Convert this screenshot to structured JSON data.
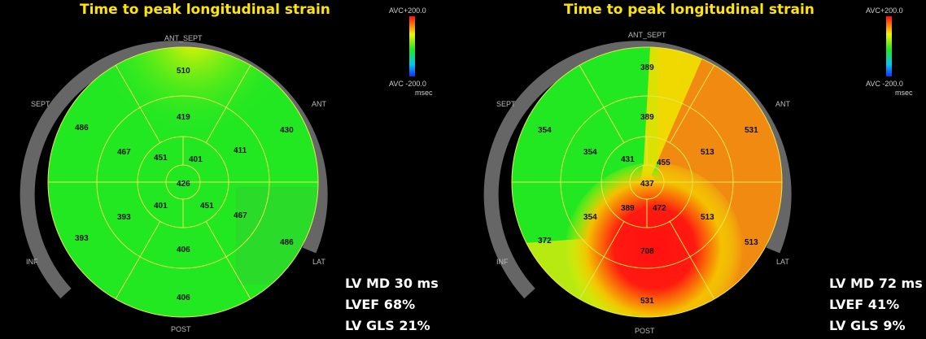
{
  "panels": [
    {
      "title": "Time to peak longitudinal strain",
      "labels": {
        "ant_sept": "ANT_SEPT",
        "ant": "ANT",
        "sept": "SEPT",
        "inf": "INF",
        "lat": "LAT",
        "post": "POST"
      },
      "scale": {
        "top": "AVC+200.0",
        "bottom": "AVC -200.0",
        "unit": "msec"
      },
      "segments": {
        "basal": [
          "510",
          "430",
          "486",
          "406",
          "393",
          "486"
        ],
        "mid": [
          "419",
          "411",
          "467",
          "406",
          "393",
          "467"
        ],
        "apical": [
          "401",
          "451",
          "401",
          "451"
        ],
        "apex": "426"
      },
      "stats": [
        "LV MD 30 ms",
        "LVEF 68%",
        "LV GLS 21%"
      ]
    },
    {
      "title": "Time to peak longitudinal strain",
      "labels": {
        "ant_sept": "ANT_SEPT",
        "ant": "ANT",
        "sept": "SEPT",
        "inf": "INF",
        "lat": "LAT",
        "post": "POST"
      },
      "scale": {
        "top": "AVC+200.0",
        "bottom": "AVC -200.0",
        "unit": "msec"
      },
      "segments": {
        "basal": [
          "389",
          "531",
          "513",
          "531",
          "372",
          "354"
        ],
        "mid": [
          "389",
          "513",
          "513",
          "708",
          "354",
          "354"
        ],
        "apical": [
          "455",
          "472",
          "389",
          "431"
        ],
        "apex": "437"
      },
      "stats": [
        "LV MD 72 ms",
        "LVEF 41%",
        "LV GLS 9%"
      ]
    }
  ],
  "colors": {
    "green": "#22e822",
    "yellow": "#f4f400",
    "orange": "#f08a10",
    "red": "#ff1010",
    "grid": "#e8e850",
    "ring": "#666666"
  }
}
